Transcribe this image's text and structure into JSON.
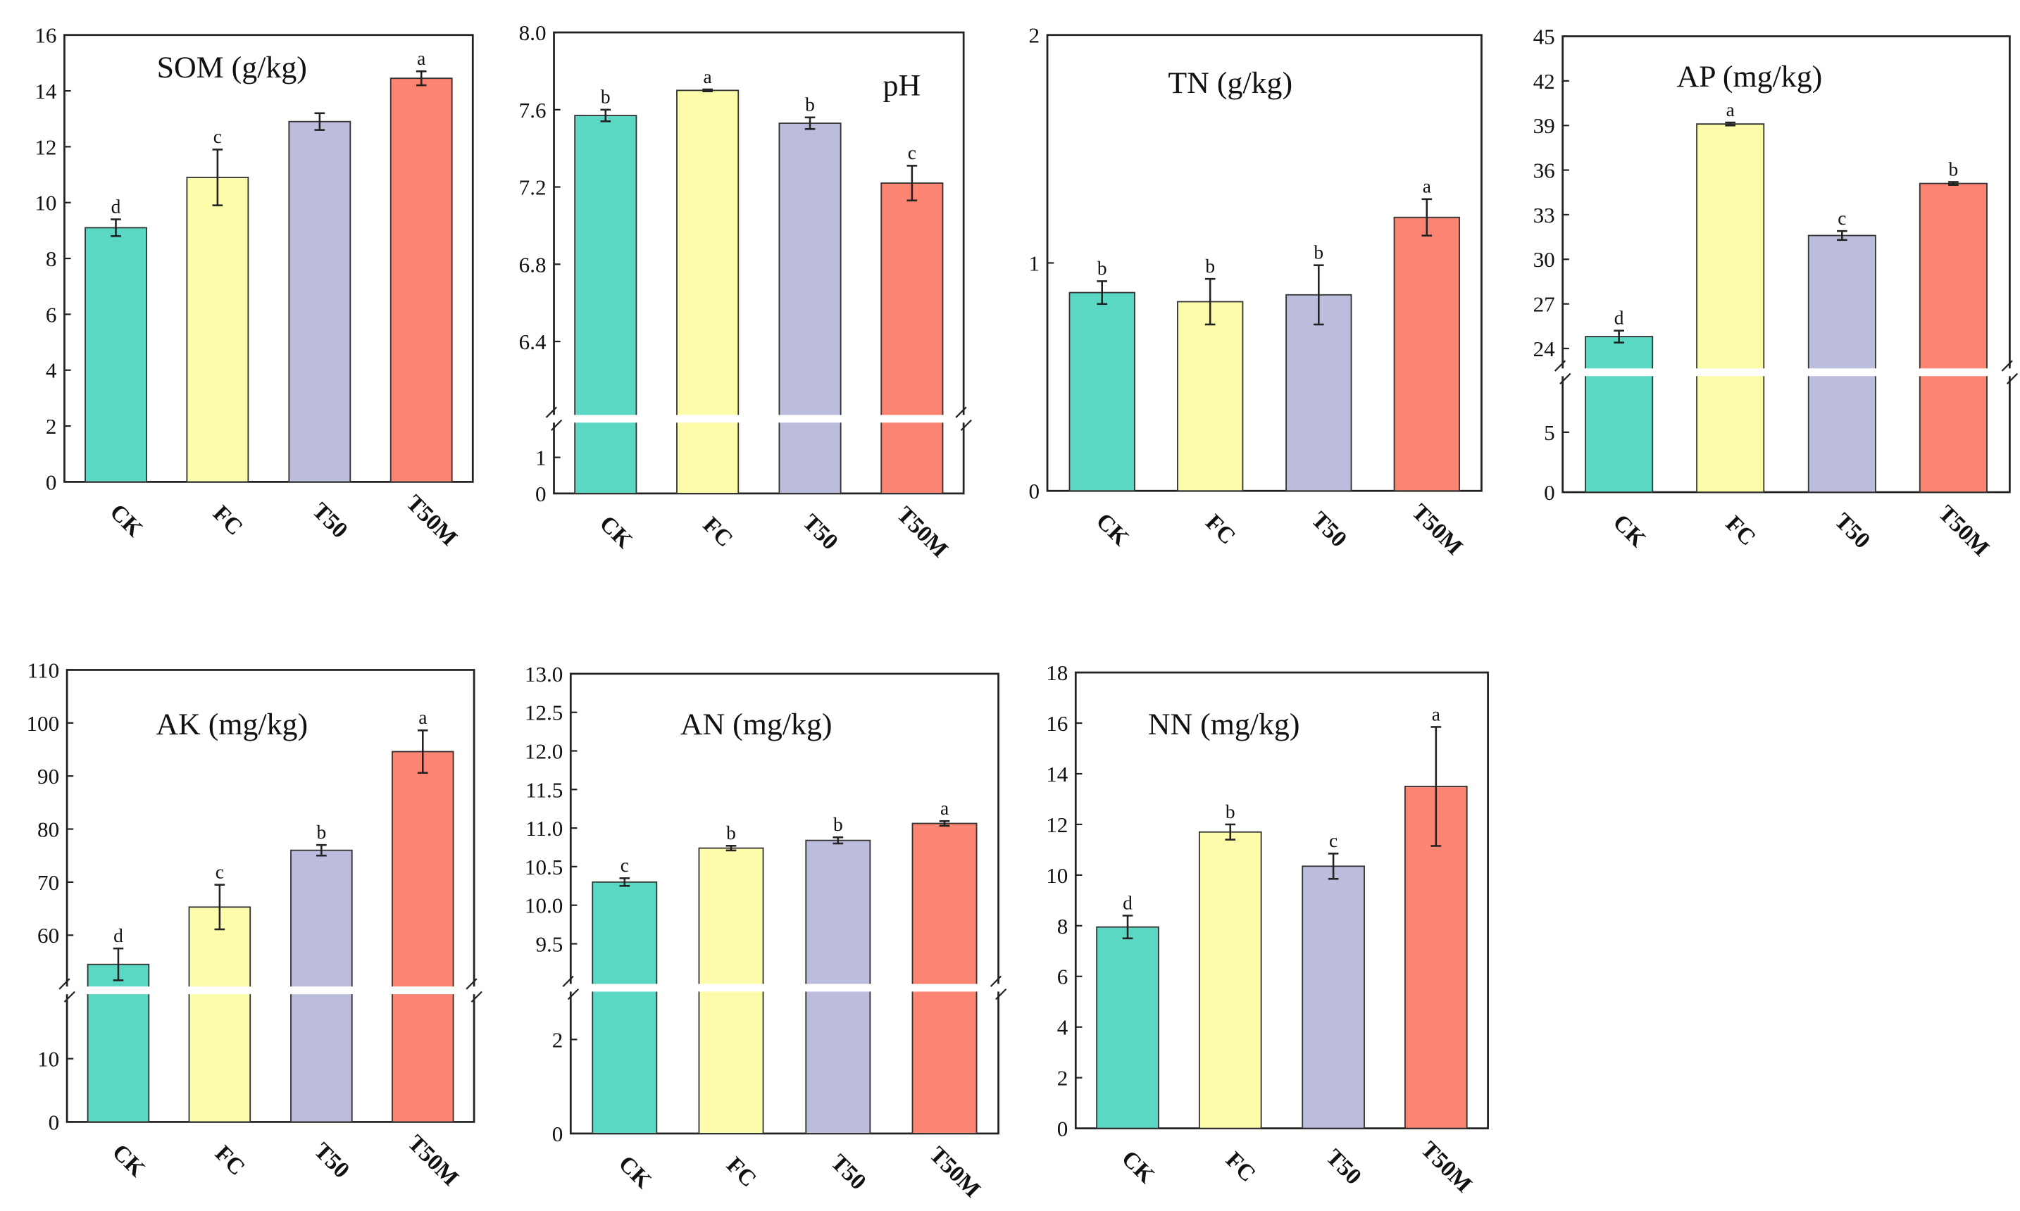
{
  "colors": {
    "CK": "#5ad8c4",
    "FC": "#fcfcaa",
    "T50": "#bcbcdc",
    "T50M": "#fc8472"
  },
  "chart_data": [
    {
      "type": "bar",
      "title": "SOM (g/kg)",
      "categories": [
        "CK",
        "FC",
        "T50",
        "T50M"
      ],
      "values": [
        9.1,
        10.9,
        12.9,
        14.45
      ],
      "errors": [
        0.3,
        1.0,
        0.3,
        0.25
      ],
      "letters": [
        "d",
        "c",
        null,
        "a"
      ],
      "ylim": [
        0,
        16
      ],
      "yticks": [
        "0",
        "2",
        "4",
        "6",
        "8",
        "10",
        "12",
        "14",
        "16"
      ],
      "ytick_values": [
        0,
        2,
        4,
        6,
        8,
        10,
        12,
        14,
        16
      ],
      "axis_break": null
    },
    {
      "type": "bar",
      "title": "pH",
      "categories": [
        "CK",
        "FC",
        "T50",
        "T50M"
      ],
      "values": [
        7.57,
        7.7,
        7.53,
        7.22
      ],
      "errors": [
        0.03,
        0.005,
        0.03,
        0.09
      ],
      "letters": [
        "b",
        "a",
        "b",
        "c"
      ],
      "ylim": [
        0,
        8.0
      ],
      "axis_break": {
        "lower": [
          0,
          2.07
        ],
        "upper": [
          6.0,
          8.0
        ]
      },
      "yticks": [
        "0",
        "1",
        "6.4",
        "6.8",
        "7.2",
        "7.6",
        "8.0"
      ],
      "ytick_values": [
        0,
        1,
        6.4,
        6.8,
        7.2,
        7.6,
        8.0
      ]
    },
    {
      "type": "bar",
      "title": "TN (g/kg)",
      "categories": [
        "CK",
        "FC",
        "T50",
        "T50M"
      ],
      "values": [
        0.87,
        0.83,
        0.86,
        1.2
      ],
      "errors": [
        0.05,
        0.1,
        0.13,
        0.08
      ],
      "letters": [
        "b",
        "b",
        "b",
        "a"
      ],
      "ylim": [
        0,
        2
      ],
      "yticks": [
        "0",
        "1",
        "2"
      ],
      "ytick_values": [
        0,
        1,
        2
      ],
      "axis_break": null
    },
    {
      "type": "bar",
      "title": "AP (mg/kg)",
      "categories": [
        "CK",
        "FC",
        "T50",
        "T50M"
      ],
      "values": [
        24.8,
        39.1,
        31.6,
        35.1
      ],
      "errors": [
        0.4,
        0.1,
        0.3,
        0.1
      ],
      "letters": [
        "d",
        "a",
        "c",
        "b"
      ],
      "ylim": [
        0,
        45
      ],
      "axis_break": {
        "lower": [
          0,
          10
        ],
        "upper": [
          22.4,
          45
        ]
      },
      "yticks": [
        "0",
        "5",
        "24",
        "27",
        "30",
        "33",
        "36",
        "39",
        "42",
        "45"
      ],
      "ytick_values": [
        0,
        5,
        24,
        27,
        30,
        33,
        36,
        39,
        42,
        45
      ]
    },
    {
      "type": "bar",
      "title": "AK (mg/kg)",
      "categories": [
        "CK",
        "FC",
        "T50",
        "T50M"
      ],
      "values": [
        54.5,
        65.3,
        76.0,
        94.6
      ],
      "errors": [
        3.0,
        4.2,
        1.0,
        4.0
      ],
      "letters": [
        "d",
        "c",
        "b",
        "a"
      ],
      "ylim": [
        0,
        110
      ],
      "axis_break": {
        "lower": [
          0,
          20.8
        ],
        "upper": [
          49.6,
          110
        ]
      },
      "yticks": [
        "0",
        "10",
        "60",
        "70",
        "80",
        "90",
        "100",
        "110"
      ],
      "ytick_values": [
        0,
        10,
        60,
        70,
        80,
        90,
        100,
        110
      ]
    },
    {
      "type": "bar",
      "title": "AN (mg/kg)",
      "categories": [
        "CK",
        "FC",
        "T50",
        "T50M"
      ],
      "values": [
        10.3,
        10.74,
        10.84,
        11.06
      ],
      "errors": [
        0.05,
        0.03,
        0.04,
        0.03
      ],
      "letters": [
        "c",
        "b",
        "b",
        "a"
      ],
      "ylim": [
        0,
        13.0
      ],
      "axis_break": {
        "lower": [
          0,
          3.1
        ],
        "upper": [
          8.93,
          13.0
        ]
      },
      "yticks": [
        "0",
        "2",
        "9.5",
        "10.0",
        "10.5",
        "11.0",
        "11.5",
        "12.0",
        "12.5",
        "13.0"
      ],
      "ytick_values": [
        0,
        2,
        9.5,
        10.0,
        10.5,
        11.0,
        11.5,
        12.0,
        12.5,
        13.0
      ]
    },
    {
      "type": "bar",
      "title": "NN (mg/kg)",
      "categories": [
        "CK",
        "FC",
        "T50",
        "T50M"
      ],
      "values": [
        7.95,
        11.7,
        10.35,
        13.5
      ],
      "errors": [
        0.45,
        0.3,
        0.5,
        2.35
      ],
      "letters": [
        "d",
        "b",
        "c",
        "a"
      ],
      "ylim": [
        0,
        18
      ],
      "yticks": [
        "0",
        "2",
        "4",
        "6",
        "8",
        "10",
        "12",
        "14",
        "16",
        "18"
      ],
      "ytick_values": [
        0,
        2,
        4,
        6,
        8,
        10,
        12,
        14,
        16,
        18
      ],
      "axis_break": null
    }
  ]
}
